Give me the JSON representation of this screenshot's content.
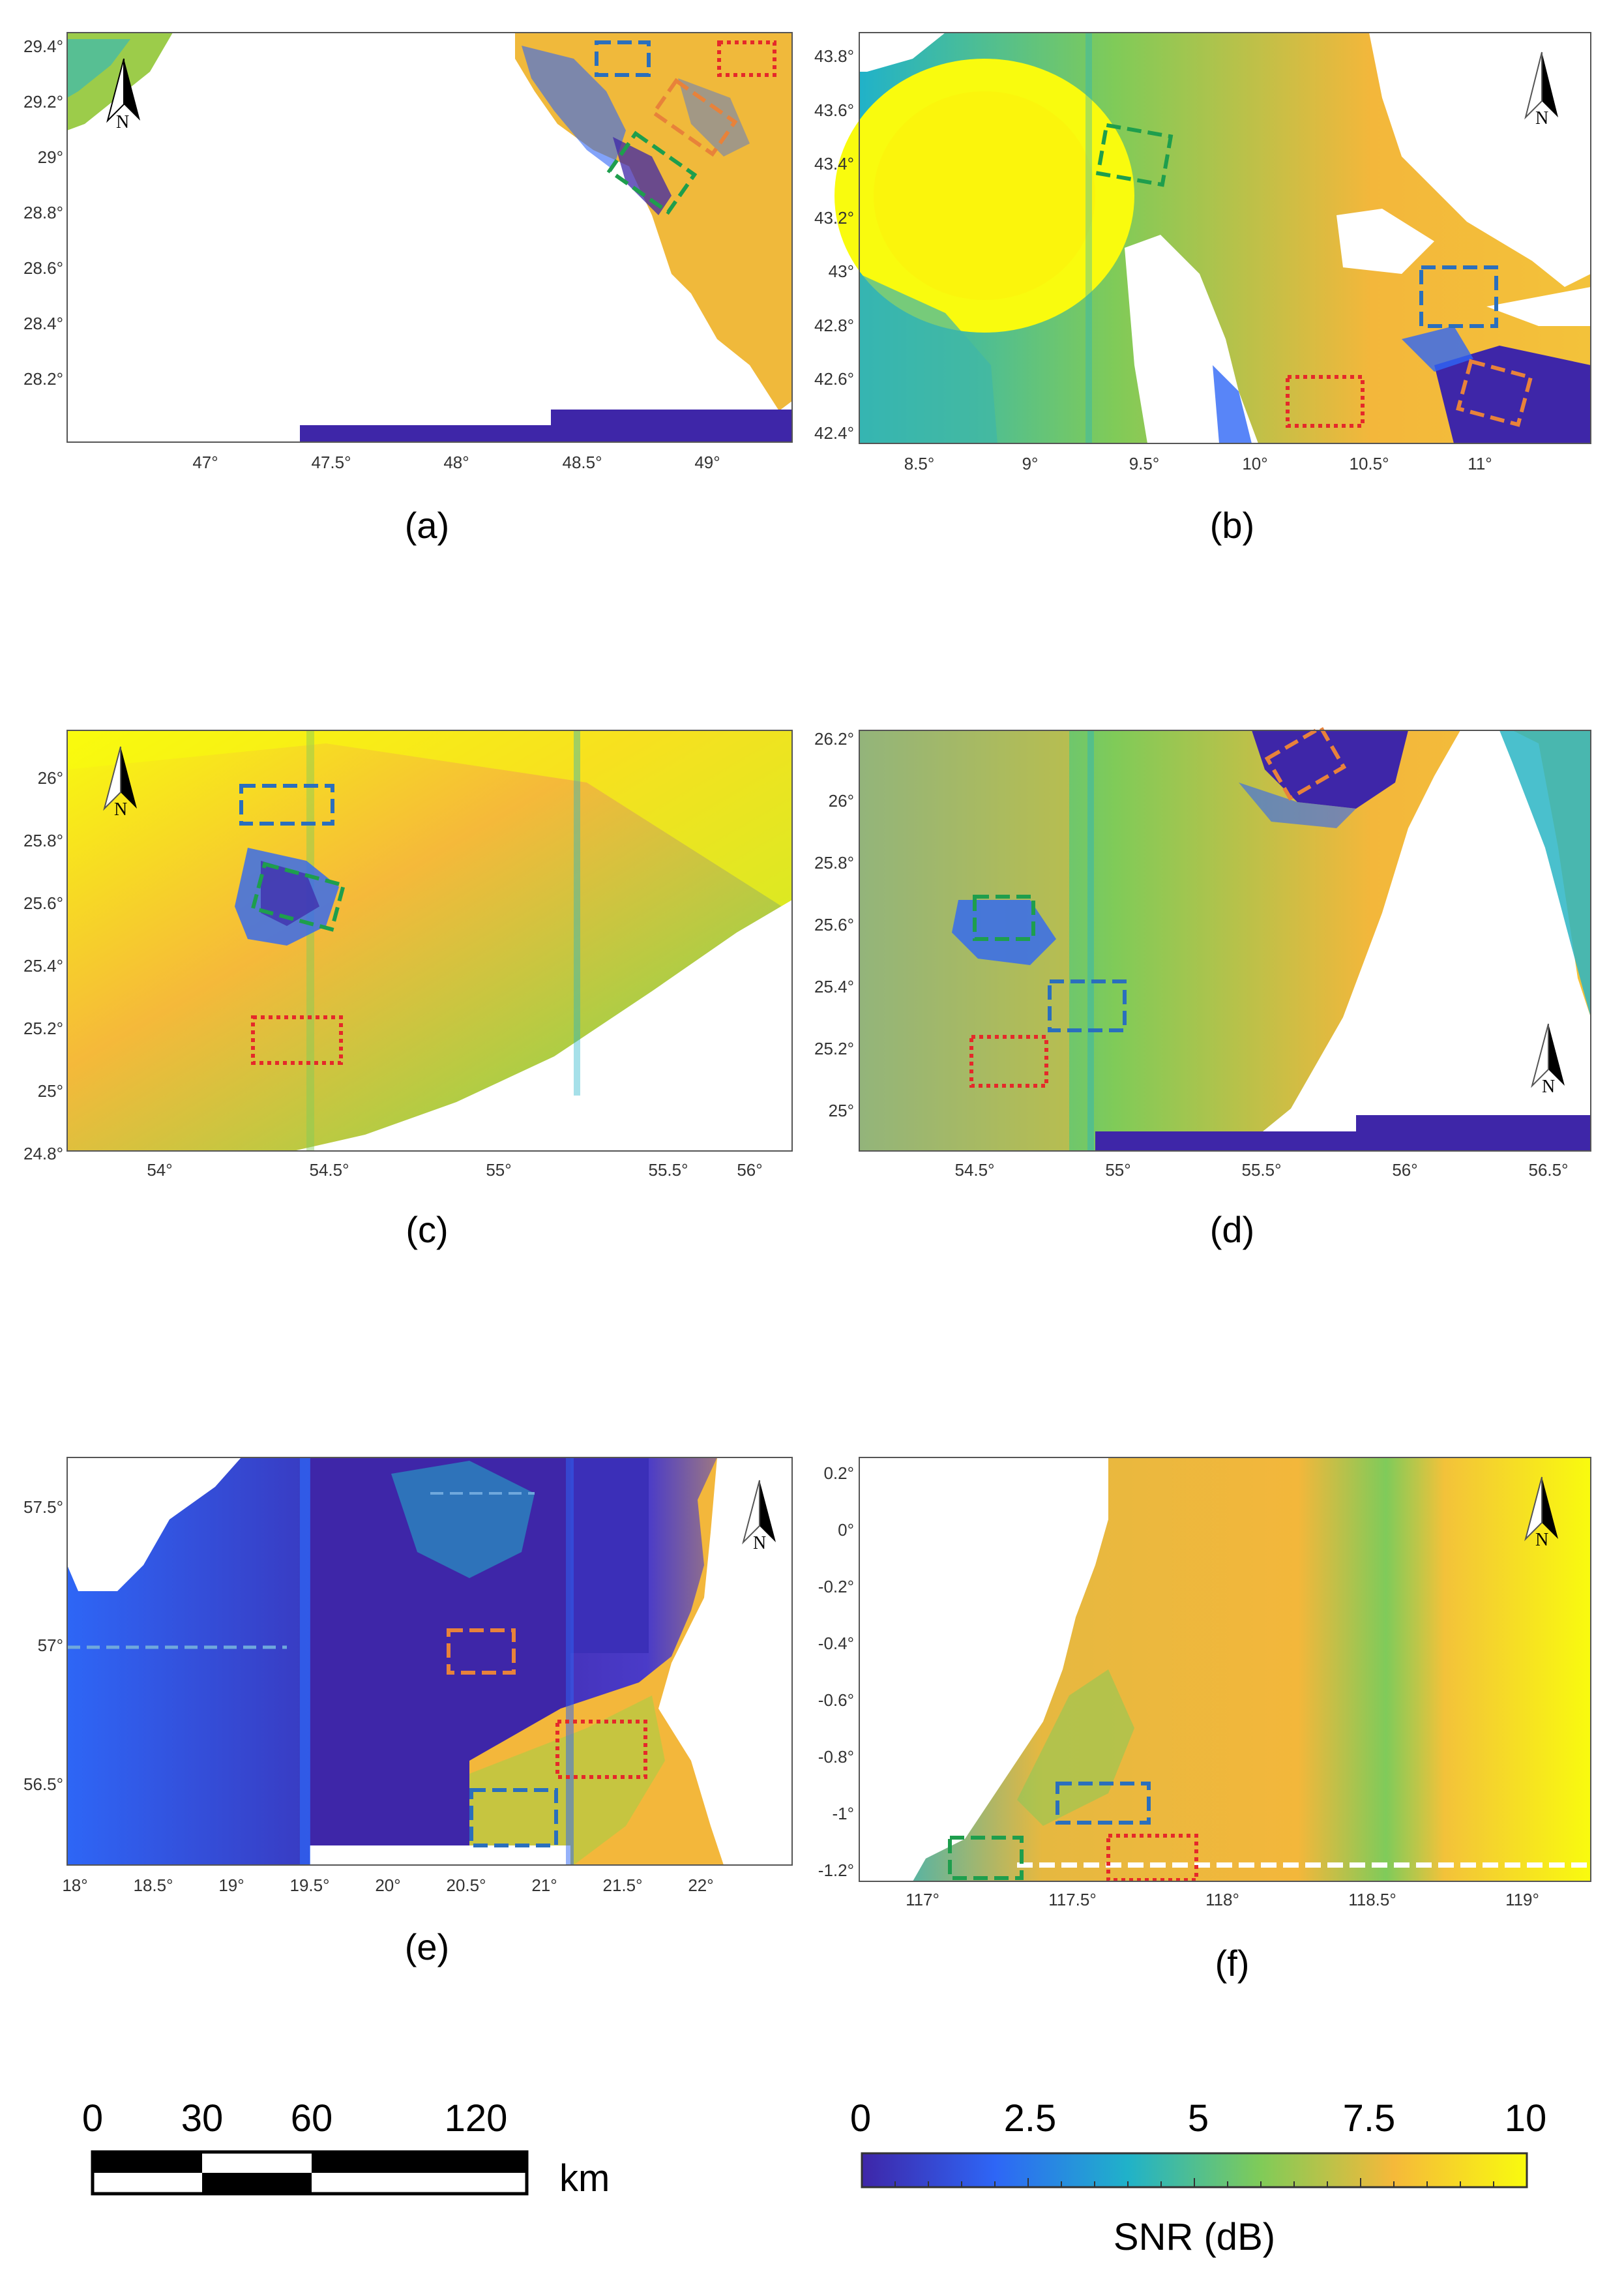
{
  "panels": [
    {
      "caption": "(a)",
      "lon_ticks": [
        "47°",
        "47.5°",
        "48°",
        "48.5°",
        "49°"
      ],
      "lat_ticks": [
        "29.4°",
        "29.2°",
        "29°",
        "28.8°",
        "28.6°",
        "28.4°",
        "28.2°"
      ],
      "boxes": [
        "blue",
        "red",
        "orange",
        "green"
      ],
      "north_arrow_label": "N",
      "north_arrow_style": "black"
    },
    {
      "caption": "(b)",
      "lon_ticks": [
        "8.5°",
        "9°",
        "9.5°",
        "10°",
        "10.5°",
        "11°"
      ],
      "lat_ticks": [
        "43.8°",
        "43.6°",
        "43.4°",
        "43.2°",
        "43°",
        "42.8°",
        "42.6°",
        "42.4°"
      ],
      "boxes": [
        "green",
        "blue",
        "red",
        "orange"
      ],
      "north_arrow_label": "N",
      "north_arrow_style": "outline"
    },
    {
      "caption": "(c)",
      "lon_ticks": [
        "54°",
        "54.5°",
        "55°",
        "55.5°",
        "56°"
      ],
      "lat_ticks": [
        "26°",
        "25.8°",
        "25.6°",
        "25.4°",
        "25.2°",
        "25°",
        "24.8°"
      ],
      "boxes": [
        "blue",
        "green",
        "red"
      ],
      "north_arrow_label": "N",
      "north_arrow_style": "outline"
    },
    {
      "caption": "(d)",
      "lon_ticks": [
        "54.5°",
        "55°",
        "55.5°",
        "56°",
        "56.5°"
      ],
      "lat_ticks": [
        "26.2°",
        "26°",
        "25.8°",
        "25.6°",
        "25.4°",
        "25.2°",
        "25°"
      ],
      "boxes": [
        "orange",
        "green",
        "blue",
        "red"
      ],
      "north_arrow_label": "N",
      "north_arrow_style": "outline"
    },
    {
      "caption": "(e)",
      "lon_ticks": [
        "18°",
        "18.5°",
        "19°",
        "19.5°",
        "20°",
        "20.5°",
        "21°",
        "21.5°",
        "22°"
      ],
      "lat_ticks": [
        "57.5°",
        "57°",
        "56.5°"
      ],
      "boxes": [
        "orange",
        "red",
        "blue"
      ],
      "north_arrow_label": "N",
      "north_arrow_style": "outline"
    },
    {
      "caption": "(f)",
      "lon_ticks": [
        "117°",
        "117.5°",
        "118°",
        "118.5°",
        "119°"
      ],
      "lat_ticks": [
        "0.2°",
        "0°",
        "-0.2°",
        "-0.4°",
        "-0.6°",
        "-0.8°",
        "-1°",
        "-1.2°"
      ],
      "boxes": [
        "blue",
        "green",
        "red"
      ],
      "north_arrow_label": "N",
      "north_arrow_style": "outline"
    }
  ],
  "scale_bar": {
    "labels": [
      "0",
      "30",
      "60",
      "120"
    ],
    "unit": "km"
  },
  "colorbar": {
    "tick_labels": [
      "0",
      "2.5",
      "5",
      "7.5",
      "10"
    ],
    "title": "SNR (dB)",
    "colormap": [
      "#3e26a8",
      "#2e66f6",
      "#20b2c9",
      "#80cb58",
      "#f5b93a",
      "#f9fb0e"
    ]
  }
}
